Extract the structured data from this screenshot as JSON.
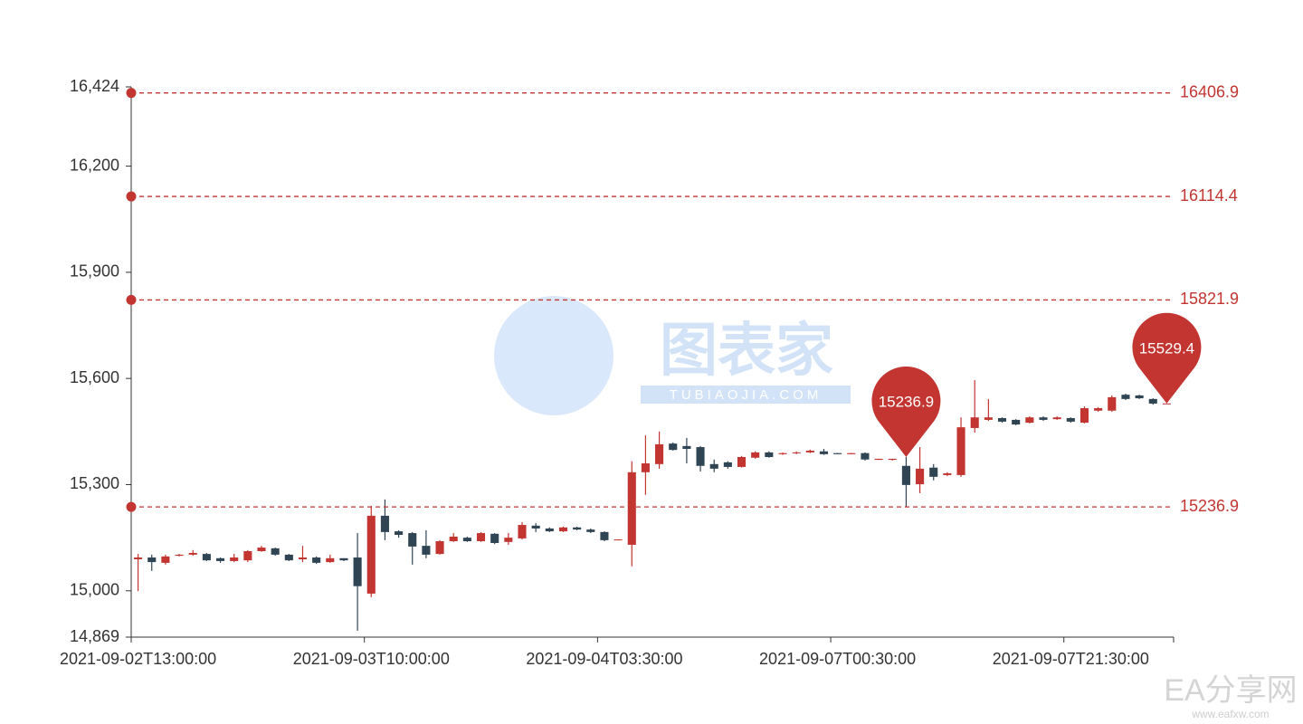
{
  "chart_data": {
    "type": "candlestick",
    "categories": [
      "2021-09-02T13:00:00",
      null,
      null,
      null,
      null,
      null,
      null,
      null,
      null,
      null,
      null,
      null,
      null,
      null,
      null,
      null,
      null,
      "2021-09-03T10:00:00",
      null,
      null,
      null,
      null,
      null,
      null,
      null,
      null,
      null,
      null,
      null,
      null,
      null,
      null,
      null,
      null,
      "2021-09-04T03:30:00",
      null,
      null,
      null,
      null,
      null,
      null,
      null,
      null,
      null,
      null,
      null,
      null,
      null,
      null,
      null,
      null,
      "2021-09-07T00:30:00",
      null,
      null,
      null,
      null,
      null,
      null,
      null,
      null,
      null,
      null,
      null,
      null,
      null,
      null,
      null,
      null,
      "2021-09-07T21:30:00",
      null,
      null,
      null,
      null,
      null,
      null,
      null
    ],
    "series": [
      {
        "up_color": "#c23531",
        "down_color": "#2f4554",
        "values": [
          [
            15089,
            15094,
            14999,
            15104
          ],
          [
            15094,
            15081,
            15056,
            15102
          ],
          [
            15079,
            15097,
            15074,
            15102
          ],
          [
            15099,
            15102,
            15097,
            15104
          ],
          [
            15102,
            15107,
            15099,
            15115
          ],
          [
            15104,
            15086,
            15084,
            15107
          ],
          [
            15092,
            15084,
            15079,
            15094
          ],
          [
            15084,
            15094,
            15081,
            15104
          ],
          [
            15086,
            15112,
            15081,
            15115
          ],
          [
            15112,
            15122,
            15110,
            15127
          ],
          [
            15120,
            15102,
            15099,
            15122
          ],
          [
            15102,
            15086,
            15084,
            15104
          ],
          [
            15089,
            15094,
            15081,
            15127
          ],
          [
            15094,
            15079,
            15076,
            15097
          ],
          [
            15081,
            15092,
            15079,
            15102
          ],
          [
            15092,
            15086,
            15084,
            15092
          ],
          [
            15094,
            15013,
            14887,
            15163
          ],
          [
            14992,
            15212,
            14982,
            15240
          ],
          [
            15212,
            15166,
            15143,
            15258
          ],
          [
            15168,
            15158,
            15150,
            15171
          ],
          [
            15163,
            15125,
            15074,
            15166
          ],
          [
            15127,
            15102,
            15092,
            15171
          ],
          [
            15104,
            15140,
            15102,
            15143
          ],
          [
            15140,
            15153,
            15138,
            15163
          ],
          [
            15150,
            15140,
            15138,
            15153
          ],
          [
            15140,
            15163,
            15138,
            15166
          ],
          [
            15161,
            15135,
            15132,
            15163
          ],
          [
            15138,
            15150,
            15130,
            15163
          ],
          [
            15148,
            15186,
            15145,
            15194
          ],
          [
            15184,
            15176,
            15166,
            15191
          ],
          [
            15176,
            15168,
            15166,
            15179
          ],
          [
            15168,
            15179,
            15166,
            15181
          ],
          [
            15179,
            15173,
            15171,
            15181
          ],
          [
            15173,
            15166,
            15163,
            15176
          ],
          [
            15166,
            15143,
            15140,
            15168
          ],
          [
            15143,
            15145,
            15143,
            15145
          ],
          [
            15130,
            15335,
            15069,
            15366
          ],
          [
            15335,
            15360,
            15271,
            15439
          ],
          [
            15358,
            15414,
            15345,
            15450
          ],
          [
            15416,
            15398,
            15396,
            15419
          ],
          [
            15409,
            15401,
            15360,
            15432
          ],
          [
            15406,
            15353,
            15337,
            15409
          ],
          [
            15358,
            15345,
            15335,
            15371
          ],
          [
            15363,
            15350,
            15345,
            15366
          ],
          [
            15350,
            15378,
            15348,
            15381
          ],
          [
            15376,
            15391,
            15373,
            15394
          ],
          [
            15391,
            15378,
            15376,
            15394
          ],
          [
            15386,
            15389,
            15384,
            15391
          ],
          [
            15389,
            15391,
            15386,
            15394
          ],
          [
            15391,
            15396,
            15389,
            15399
          ],
          [
            15394,
            15386,
            15384,
            15401
          ],
          [
            15389,
            15386,
            15386,
            15389
          ],
          [
            15386,
            15389,
            15386,
            15389
          ],
          [
            15389,
            15371,
            15368,
            15391
          ],
          [
            15370,
            15373,
            15370,
            15373
          ],
          [
            15370,
            15373,
            15368,
            15373
          ],
          [
            15353,
            15299,
            15236.9,
            15378
          ],
          [
            15301,
            15345,
            15276,
            15406
          ],
          [
            15348,
            15322,
            15312,
            15358
          ],
          [
            15327,
            15332,
            15324,
            15335
          ],
          [
            15327,
            15462,
            15322,
            15490
          ],
          [
            15460,
            15490,
            15447,
            15595
          ],
          [
            15483,
            15490,
            15480,
            15542
          ],
          [
            15488,
            15478,
            15475,
            15490
          ],
          [
            15483,
            15470,
            15468,
            15485
          ],
          [
            15475,
            15490,
            15473,
            15493
          ],
          [
            15490,
            15483,
            15480,
            15493
          ],
          [
            15485,
            15490,
            15483,
            15493
          ],
          [
            15488,
            15478,
            15475,
            15490
          ],
          [
            15475,
            15516,
            15473,
            15521
          ],
          [
            15509,
            15516,
            15506,
            15519
          ],
          [
            15509,
            15547,
            15506,
            15552
          ],
          [
            15554,
            15542,
            15539,
            15557
          ],
          [
            15552,
            15544,
            15542,
            15554
          ],
          [
            15542,
            15529,
            15526,
            15544
          ],
          [
            15528,
            15529.4,
            15528,
            15529.4
          ]
        ]
      }
    ],
    "ylim": [
      14869,
      16424
    ],
    "yticks": [
      {
        "value": 14869,
        "label": "14,869"
      },
      {
        "value": 15000,
        "label": "15,000"
      },
      {
        "value": 15300,
        "label": "15,300"
      },
      {
        "value": 15600,
        "label": "15,600"
      },
      {
        "value": 15900,
        "label": "15,900"
      },
      {
        "value": 16200,
        "label": "16,200"
      },
      {
        "value": 16424,
        "label": "16,424"
      }
    ],
    "mark_lines": [
      16406.9,
      16114.4,
      15821.9,
      15236.9
    ],
    "mark_points": [
      15236.9,
      15529.4
    ],
    "mark_color": "#c23531"
  },
  "watermarks": [
    "图表家",
    "TUBIAOJIA.COM",
    "EA分享网",
    "www.eafxw.com"
  ]
}
